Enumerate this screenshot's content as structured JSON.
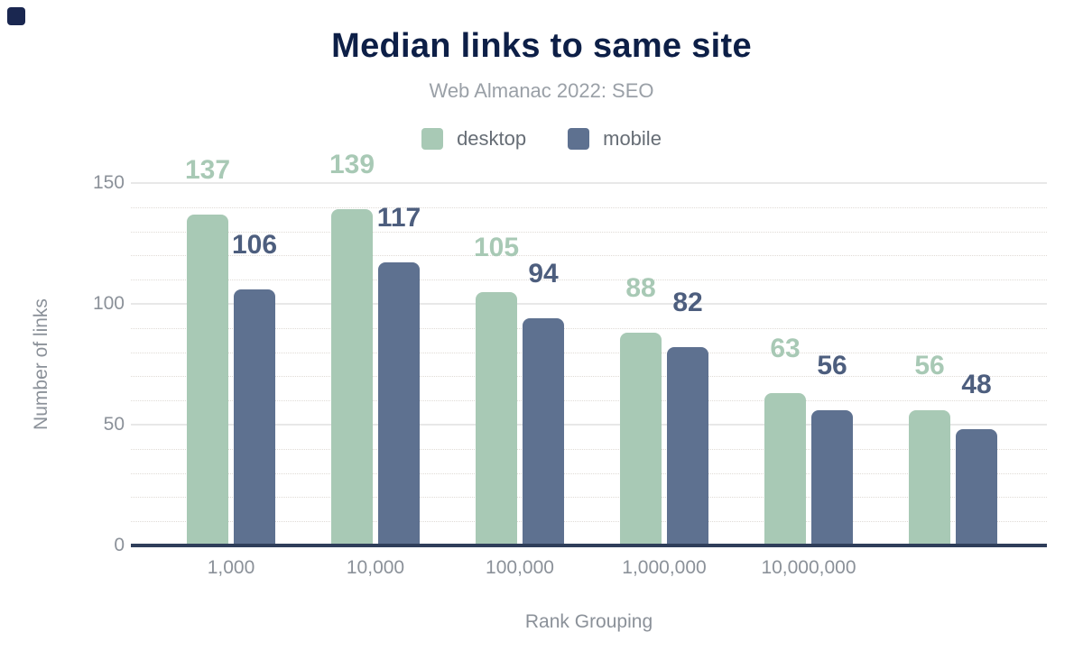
{
  "chart_data": {
    "type": "bar",
    "title": "Median links to same site",
    "subtitle": "Web Almanac 2022: SEO",
    "xlabel": "Rank Grouping",
    "ylabel": "Number of links",
    "categories": [
      "1,000",
      "10,000",
      "100,000",
      "1,000,000",
      "10,000,000",
      ""
    ],
    "series": [
      {
        "name": "desktop",
        "values": [
          137,
          139,
          105,
          88,
          63,
          56
        ],
        "color": "#a8c9b5",
        "label_color": "#a8c9b5"
      },
      {
        "name": "mobile",
        "values": [
          106,
          117,
          94,
          82,
          56,
          48
        ],
        "color": "#5e7190",
        "label_color": "#4d5e7e"
      }
    ],
    "ylim": [
      0,
      150
    ],
    "yticks": [
      0,
      50,
      100,
      150
    ],
    "minor_grid_step": 10,
    "grid": true,
    "legend_position": "top-center"
  },
  "colors": {
    "title": "#0d1f47",
    "subtitle": "#9aa0a7",
    "axis_text": "#8b9199",
    "legend_text": "#666d75",
    "grid_major": "#e8e8e8",
    "grid_minor": "#ddd8d2",
    "baseline": "#2f3e5a",
    "corner_mark": "#1a2750",
    "background": "#ffffff"
  }
}
